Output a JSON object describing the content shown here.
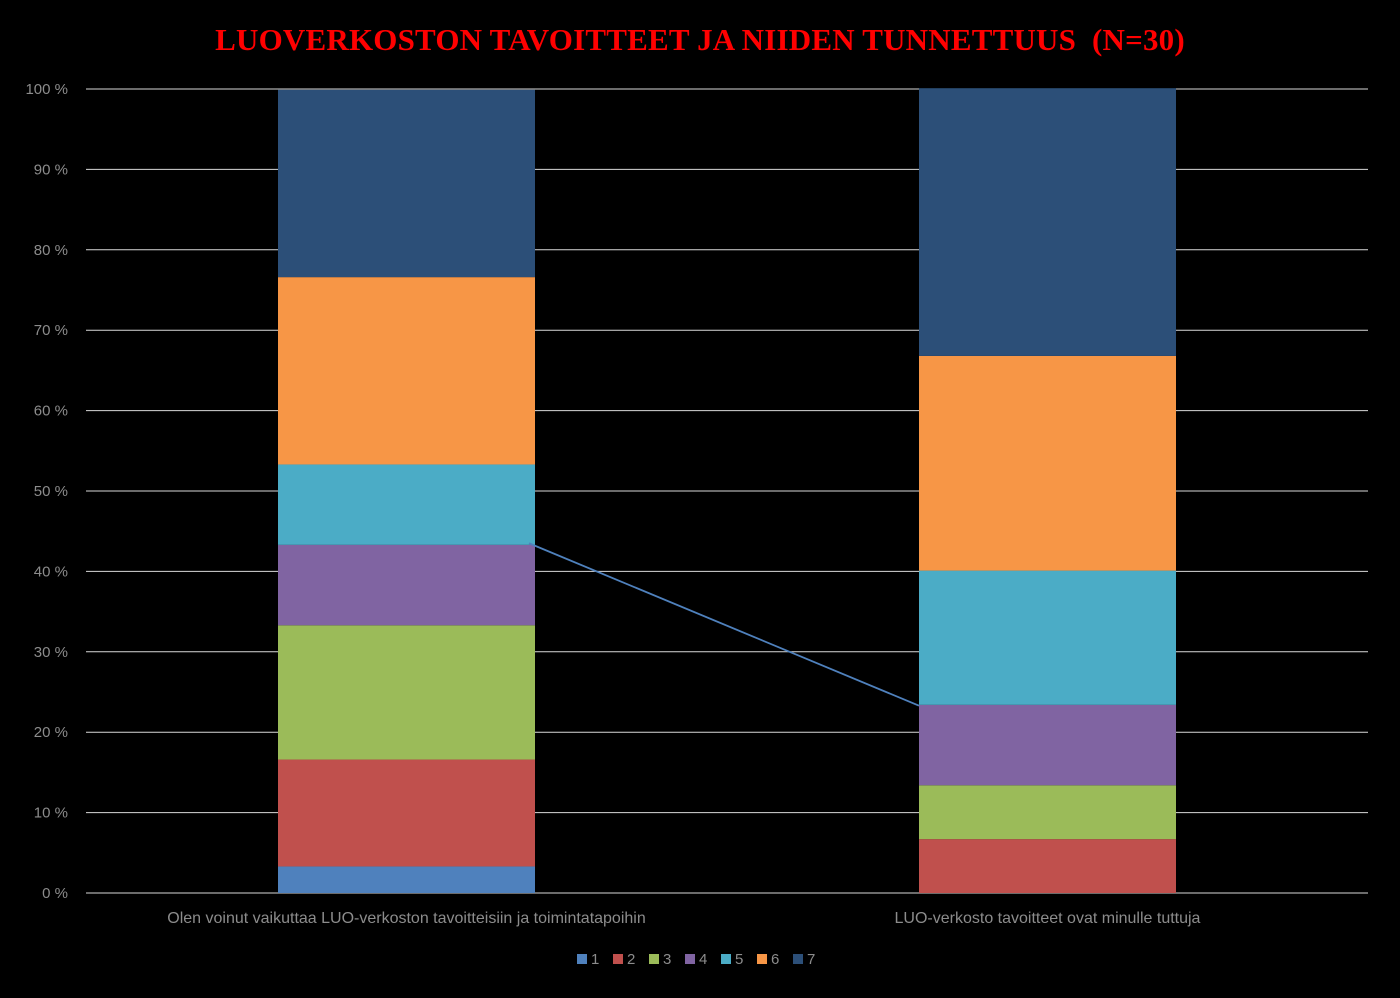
{
  "chart_data": {
    "type": "bar",
    "stacked": true,
    "percent_stacked": true,
    "title": "LUOVERKOSTON TAVOITTEET JA NIIDEN TUNNETTUUS  (N=30)",
    "categories": [
      "Olen voinut vaikuttaa LUO-verkoston tavoitteisiin ja toimintatapoihin",
      "LUO-verkosto tavoitteet ovat minulle tuttuja"
    ],
    "series": [
      {
        "name": "1",
        "color": "#4f81bd",
        "values": [
          3.3,
          0
        ]
      },
      {
        "name": "2",
        "color": "#c0504d",
        "values": [
          13.3,
          6.7
        ]
      },
      {
        "name": "3",
        "color": "#9bbb59",
        "values": [
          16.7,
          6.7
        ]
      },
      {
        "name": "4",
        "color": "#8064a2",
        "values": [
          10.0,
          10.0
        ]
      },
      {
        "name": "5",
        "color": "#4bacc6",
        "values": [
          10.0,
          16.7
        ]
      },
      {
        "name": "6",
        "color": "#f79646",
        "values": [
          23.3,
          26.7
        ]
      },
      {
        "name": "7",
        "color": "#2c4f78",
        "values": [
          23.3,
          33.3
        ]
      }
    ],
    "yticks": [
      "0 %",
      "10 %",
      "20 %",
      "30 %",
      "40 %",
      "50 %",
      "60 %",
      "70 %",
      "80 %",
      "90 %",
      "100 %"
    ],
    "ylim": [
      0,
      100
    ],
    "grid": true,
    "legend_position": "bottom",
    "connector_line": {
      "from": {
        "category": 0,
        "value": 43.5
      },
      "to": {
        "category": 1,
        "value": 23.3
      },
      "color": "#4f81bd"
    },
    "colors": {
      "background": "#000000",
      "title": "#ff0000",
      "grid": "#ffffff",
      "labels": "#8c8c8c"
    }
  }
}
